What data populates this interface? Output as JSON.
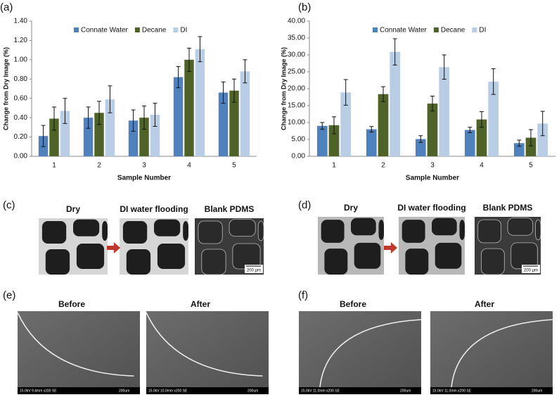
{
  "chart_data": [
    {
      "type": "bar",
      "label": "(a)",
      "x_label": "Sample Number",
      "y_label": "Change from Dry Image (%)",
      "categories": [
        "1",
        "2",
        "3",
        "4",
        "5"
      ],
      "series": [
        {
          "name": "Connate Water",
          "color": "#4f81bd",
          "values": [
            0.21,
            0.4,
            0.37,
            0.82,
            0.66
          ],
          "errors": [
            0.11,
            0.11,
            0.11,
            0.11,
            0.11
          ]
        },
        {
          "name": "Decane",
          "color": "#4f6228",
          "values": [
            0.39,
            0.45,
            0.4,
            1.0,
            0.68
          ],
          "errors": [
            0.12,
            0.12,
            0.12,
            0.12,
            0.12
          ]
        },
        {
          "name": "DI",
          "color": "#b9cde5",
          "values": [
            0.47,
            0.59,
            0.43,
            1.11,
            0.88
          ],
          "errors": [
            0.13,
            0.14,
            0.12,
            0.13,
            0.12
          ]
        }
      ],
      "ylim": [
        0,
        1.4
      ],
      "yticks": [
        {
          "value": 0,
          "label": "0.00"
        },
        {
          "value": 0.2,
          "label": "0.20"
        },
        {
          "value": 0.4,
          "label": "0.40"
        },
        {
          "value": 0.6,
          "label": "0.60"
        },
        {
          "value": 0.8,
          "label": "0.80"
        },
        {
          "value": 1.0,
          "label": "1.00"
        },
        {
          "value": 1.2,
          "label": "1.20"
        },
        {
          "value": 1.4,
          "label": "1.40"
        }
      ],
      "grid": false
    },
    {
      "type": "bar",
      "label": "(b)",
      "x_label": "Sample Number",
      "y_label": "Change from Dry Image (%)",
      "categories": [
        "1",
        "2",
        "3",
        "4",
        "5"
      ],
      "series": [
        {
          "name": "Connate Water",
          "color": "#4f81bd",
          "values": [
            9.0,
            8.0,
            5.1,
            7.8,
            3.9
          ],
          "errors": [
            1.0,
            0.8,
            1.0,
            0.8,
            0.9
          ]
        },
        {
          "name": "Decane",
          "color": "#4f6228",
          "values": [
            9.2,
            18.4,
            15.6,
            10.9,
            5.5
          ],
          "errors": [
            2.5,
            2.2,
            2.2,
            2.3,
            2.4
          ]
        },
        {
          "name": "DI",
          "color": "#b9cde5",
          "values": [
            18.9,
            30.9,
            26.4,
            22.1,
            9.7
          ],
          "errors": [
            3.8,
            3.9,
            3.6,
            3.8,
            3.6
          ]
        }
      ],
      "ylim": [
        0,
        40
      ],
      "yticks": [
        {
          "value": 0,
          "label": "0.00"
        },
        {
          "value": 5,
          "label": "5.00"
        },
        {
          "value": 10,
          "label": "10.00"
        },
        {
          "value": 15,
          "label": "15.00"
        },
        {
          "value": 20,
          "label": "20.00"
        },
        {
          "value": 25,
          "label": "25.00"
        },
        {
          "value": 30,
          "label": "30.00"
        },
        {
          "value": 35,
          "label": "35.00"
        },
        {
          "value": 40,
          "label": "40.00"
        }
      ],
      "grid": false
    }
  ],
  "image_panels": [
    {
      "label": "(c)",
      "images": [
        {
          "caption": "Dry"
        },
        {
          "caption": "DI water flooding"
        },
        {
          "caption": "Blank PDMS",
          "scale_bar": "200 µm"
        }
      ]
    },
    {
      "label": "(d)",
      "images": [
        {
          "caption": "Dry"
        },
        {
          "caption": "DI water flooding"
        },
        {
          "caption": "Blank PDMS",
          "scale_bar": "200 µm"
        }
      ]
    },
    {
      "label": "(e)",
      "images": [
        {
          "caption": "Before",
          "footer": "15.0kV 9.4mm x200 SE",
          "scale_bar": "200um"
        },
        {
          "caption": "After",
          "footer": "15.0kV 10.0mm x200 SE",
          "scale_bar": "200um"
        }
      ]
    },
    {
      "label": "(f)",
      "images": [
        {
          "caption": "Before",
          "footer": "15.0kV 11.0mm x200 SE",
          "scale_bar": "200um"
        },
        {
          "caption": "After",
          "footer": "15.0kV 11.0mm x200 SE",
          "scale_bar": "200um"
        }
      ]
    }
  ]
}
